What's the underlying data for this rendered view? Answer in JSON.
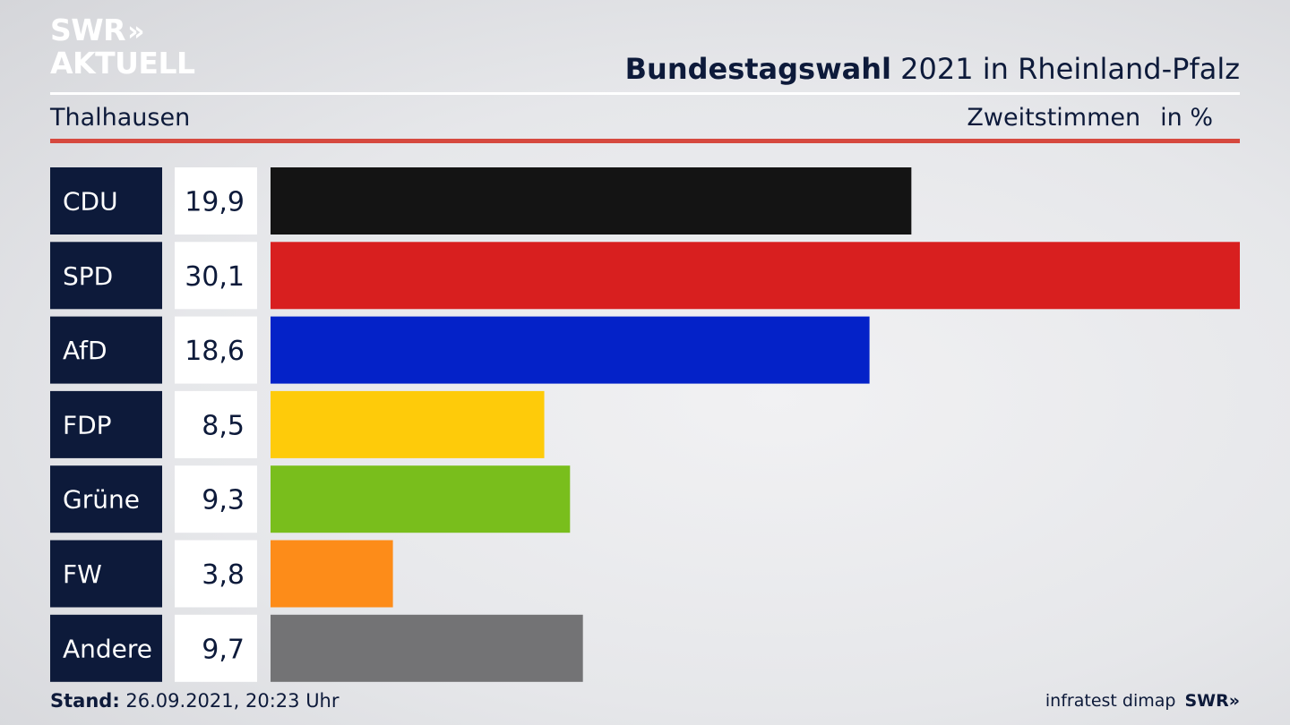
{
  "logo": {
    "line1": "SWR",
    "chevrons": "»",
    "line2": "AKTUELL"
  },
  "header": {
    "title_bold": "Bundestagswahl",
    "title_rest": "2021 in Rheinland-Pfalz",
    "region": "Thalhausen",
    "measure": "Zweitstimmen",
    "unit": "in %"
  },
  "chart_data": {
    "type": "bar",
    "orientation": "horizontal",
    "categories": [
      "CDU",
      "SPD",
      "AfD",
      "FDP",
      "Grüne",
      "FW",
      "Andere"
    ],
    "values": [
      19.9,
      30.1,
      18.6,
      8.5,
      9.3,
      3.8,
      9.7
    ],
    "value_labels": [
      "19,9",
      "30,1",
      "18,6",
      "8,5",
      "9,3",
      "3,8",
      "9,7"
    ],
    "colors": [
      "#141414",
      "#d81f1f",
      "#0422c8",
      "#fecb0a",
      "#79be1c",
      "#fd8c19",
      "#737375"
    ],
    "label_box_color": "#0d1a3a",
    "xlim": [
      0,
      30.1
    ],
    "grid": false,
    "legend": "none"
  },
  "footer": {
    "stand_label": "Stand:",
    "stand_value": "26.09.2021, 20:23 Uhr",
    "source": "infratest dimap",
    "brand": "SWR»"
  }
}
